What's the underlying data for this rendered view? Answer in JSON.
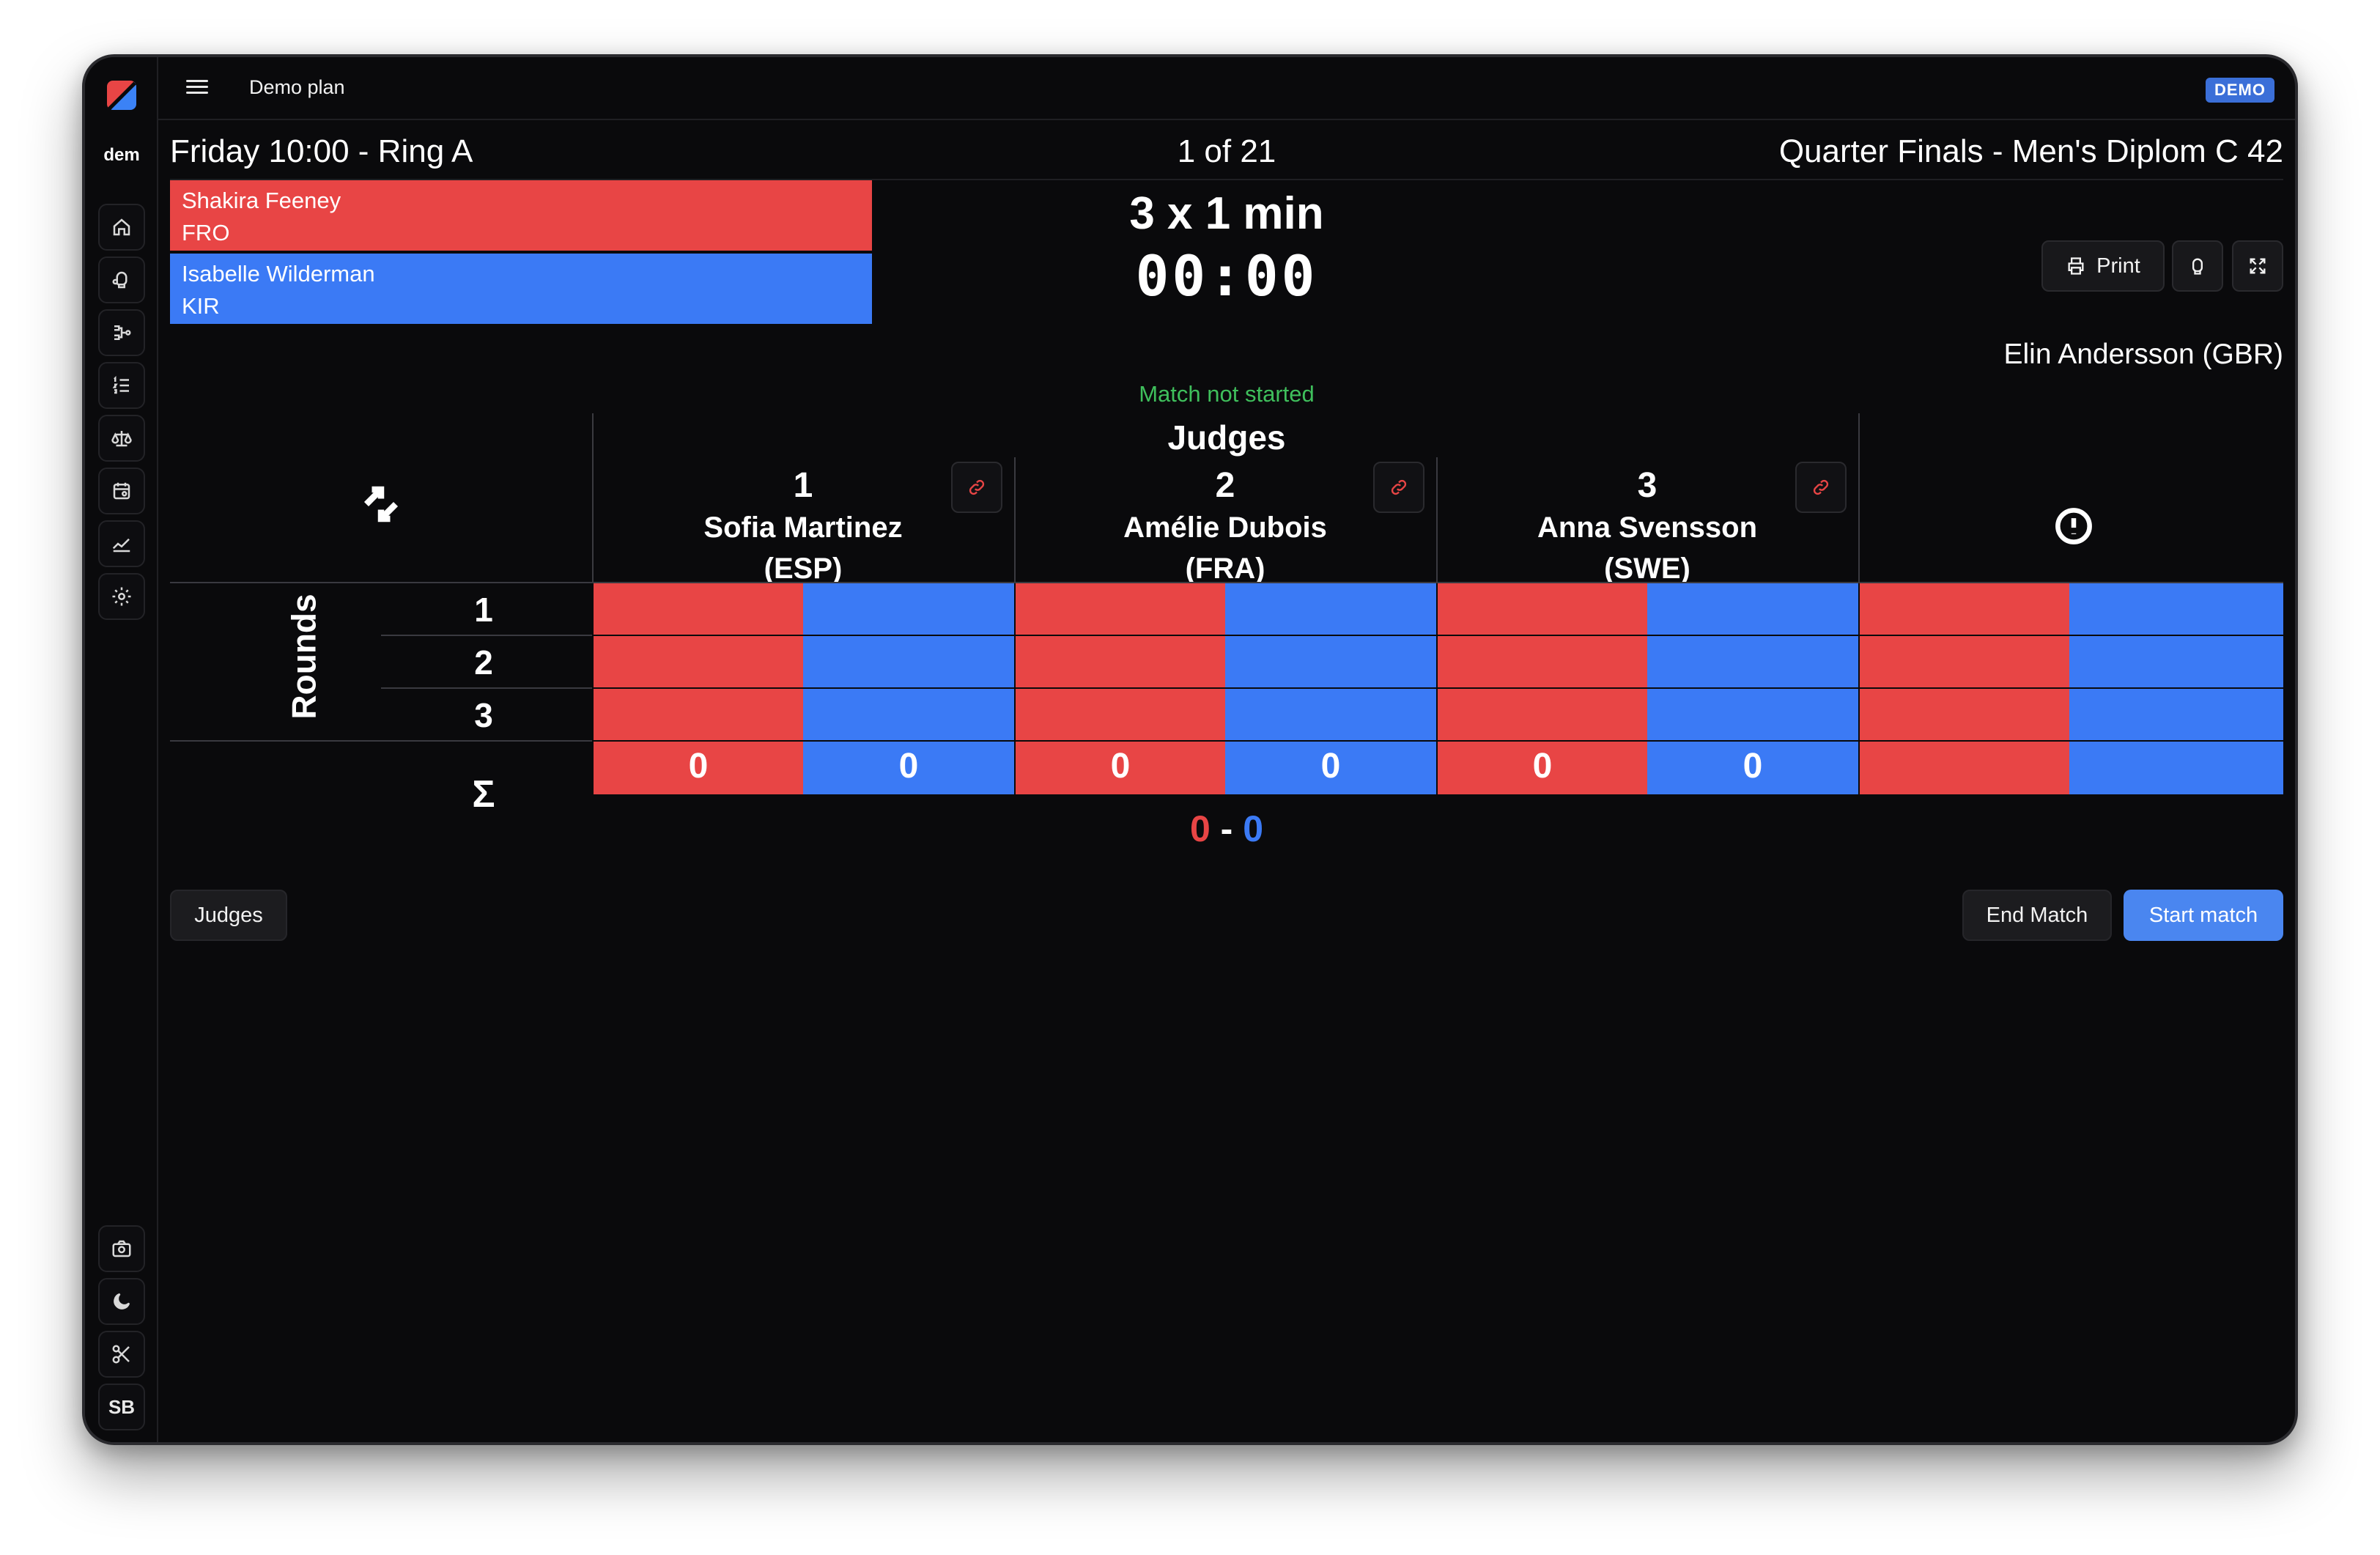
{
  "sidebar": {
    "workspace_label": "dem",
    "items": [
      {
        "icon": "home-icon"
      },
      {
        "icon": "glove-icon"
      },
      {
        "icon": "bracket-icon"
      },
      {
        "icon": "list-ordered-icon"
      },
      {
        "icon": "scale-icon"
      },
      {
        "icon": "calendar-icon"
      },
      {
        "icon": "chart-icon"
      },
      {
        "icon": "settings-icon"
      }
    ],
    "bottom": [
      {
        "icon": "camera-icon"
      },
      {
        "icon": "moon-icon"
      },
      {
        "icon": "scissors-icon"
      },
      {
        "label": "SB"
      }
    ]
  },
  "topbar": {
    "plan_title": "Demo plan",
    "badge": "DEMO"
  },
  "header": {
    "session": "Friday 10:00 - Ring A",
    "match_index": "1 of 21",
    "category": "Quarter Finals - Men's Diplom C 42"
  },
  "fighters": {
    "red": {
      "name": "Shakira Feeney",
      "country": "FRO"
    },
    "blue": {
      "name": "Isabelle Wilderman",
      "country": "KIR"
    }
  },
  "match": {
    "format": "3 x 1 min",
    "clock": "00:00",
    "status": "Match not started",
    "referee": "Elin Andersson (GBR)"
  },
  "toolbar": {
    "print_label": "Print"
  },
  "table": {
    "judges_title": "Judges",
    "rounds_label": "Rounds",
    "round_numbers": [
      "1",
      "2",
      "3"
    ],
    "sum_symbol": "Σ",
    "judges": [
      {
        "number": "1",
        "name": "Sofia Martinez",
        "country": "(ESP)",
        "red_total": "0",
        "blue_total": "0"
      },
      {
        "number": "2",
        "name": "Amélie Dubois",
        "country": "(FRA)",
        "red_total": "0",
        "blue_total": "0"
      },
      {
        "number": "3",
        "name": "Anna Svensson",
        "country": "(SWE)",
        "red_total": "0",
        "blue_total": "0"
      }
    ],
    "total_red": "0",
    "total_separator": "-",
    "total_blue": "0"
  },
  "actions": {
    "judges_label": "Judges",
    "end_label": "End Match",
    "start_label": "Start match"
  },
  "colors": {
    "red": "#e84545",
    "blue": "#3b7af5",
    "status_green": "#3fbf5c",
    "background": "#0a0a0c"
  }
}
